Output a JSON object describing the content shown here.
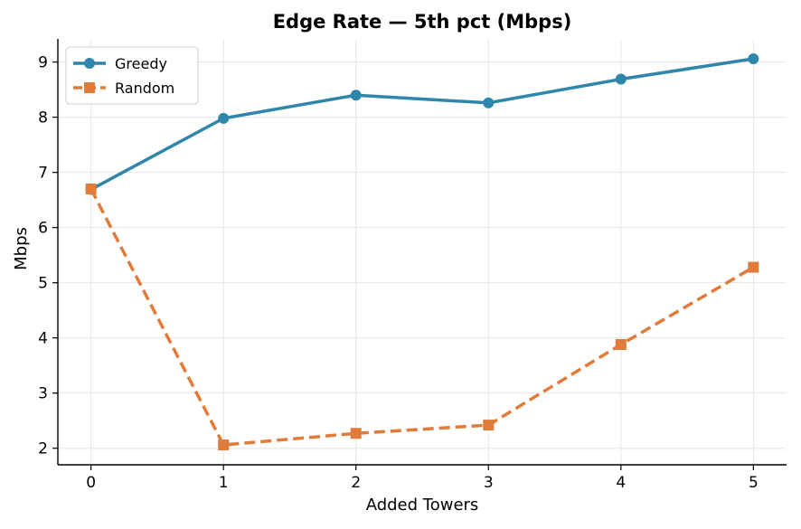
{
  "chart_data": {
    "type": "line",
    "title": "Edge Rate — 5th pct (Mbps)",
    "xlabel": "Added Towers",
    "ylabel": "Mbps",
    "x": [
      0,
      1,
      2,
      3,
      4,
      5
    ],
    "xlim": [
      -0.25,
      5.25
    ],
    "ylim": [
      1.7,
      9.42
    ],
    "xticks": [
      "0",
      "1",
      "2",
      "3",
      "4",
      "5"
    ],
    "yticks": [
      "2",
      "3",
      "4",
      "5",
      "6",
      "7",
      "8",
      "9"
    ],
    "grid": true,
    "legend_position": "top-left",
    "series": [
      {
        "name": "Greedy",
        "values": [
          6.69,
          7.98,
          8.4,
          8.26,
          8.69,
          9.06
        ],
        "color": "#2e86ab",
        "marker": "circle",
        "line_style": "solid"
      },
      {
        "name": "Random",
        "values": [
          6.7,
          2.06,
          2.27,
          2.42,
          3.88,
          5.28
        ],
        "color": "#e07b39",
        "marker": "square",
        "line_style": "dashed"
      }
    ]
  }
}
